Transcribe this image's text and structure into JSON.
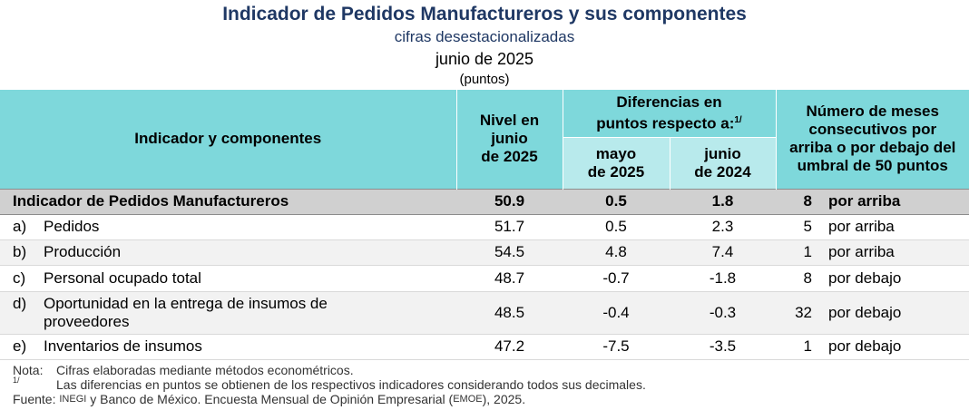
{
  "title": "Indicador de Pedidos Manufactureros y sus componentes",
  "subtitle": "cifras desestacionalizadas",
  "period": "junio de 2025",
  "units": "(puntos)",
  "headers": {
    "indicator": "Indicador y componentes",
    "level_l1": "Nivel en",
    "level_l2": "junio",
    "level_l3": "de 2025",
    "diff_l1": "Diferencias en",
    "diff_l2": "puntos respecto a:",
    "diff_sup": "1/",
    "may_l1": "mayo",
    "may_l2": "de 2025",
    "jun_l1": "junio",
    "jun_l2": "de 2024",
    "months_l1": "Número de meses",
    "months_l2": "consecutivos por",
    "months_l3": "arriba o por debajo del",
    "months_l4": "umbral de 50 puntos"
  },
  "total": {
    "label": "Indicador de Pedidos Manufactureros",
    "level": "50.9",
    "d_may": "0.5",
    "d_jun": "1.8",
    "months": "8",
    "direction": "por arriba"
  },
  "rows": [
    {
      "letter": "a)",
      "label": "Pedidos",
      "level": "51.7",
      "d_may": "0.5",
      "d_jun": "2.3",
      "months": "5",
      "direction": "por arriba"
    },
    {
      "letter": "b)",
      "label": "Producción",
      "level": "54.5",
      "d_may": "4.8",
      "d_jun": "7.4",
      "months": "1",
      "direction": "por arriba"
    },
    {
      "letter": "c)",
      "label": "Personal ocupado total",
      "level": "48.7",
      "d_may": "-0.7",
      "d_jun": "-1.8",
      "months": "8",
      "direction": "por debajo"
    },
    {
      "letter": "d)",
      "label_l1": "Oportunidad en la entrega de insumos de",
      "label_l2": "proveedores",
      "level": "48.5",
      "d_may": "-0.4",
      "d_jun": "-0.3",
      "months": "32",
      "direction": "por debajo"
    },
    {
      "letter": "e)",
      "label": "Inventarios de insumos",
      "level": "47.2",
      "d_may": "-7.5",
      "d_jun": "-3.5",
      "months": "1",
      "direction": "por debajo"
    }
  ],
  "notes": {
    "nota_key": "Nota:",
    "nota_text": "Cifras elaboradas mediante métodos econométricos.",
    "sup_key": "1/",
    "sup_text": "Las diferencias en puntos se obtienen de los respectivos indicadores considerando todos sus decimales.",
    "fuente_key": "Fuente:",
    "fuente_inegi": "INEGI",
    "fuente_mid": "y Banco de México. Encuesta Mensual de Opinión Empresarial (",
    "fuente_emoe": "EMOE",
    "fuente_end": "), 2025."
  }
}
